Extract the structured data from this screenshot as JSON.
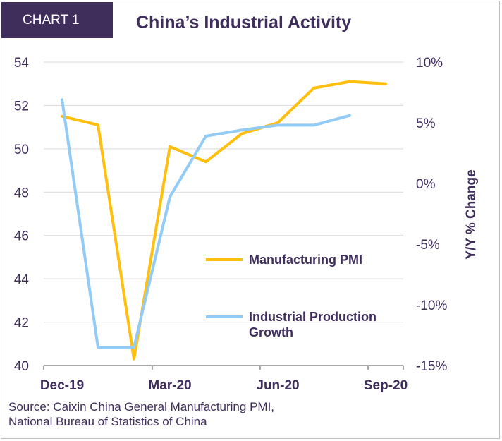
{
  "header": {
    "badge": "CHART 1",
    "title": "China’s Industrial Activity"
  },
  "source": "Source: Caixin China General Manufacturing PMI,\nNational Bureau of Statistics of China",
  "colors": {
    "pmi": "#ffbf0f",
    "ip": "#92cbf6",
    "text": "#3f2d5c"
  },
  "chart_data": {
    "type": "line",
    "x_ticks": [
      "Dec-19",
      "Mar-20",
      "Jun-20",
      "Sep-20"
    ],
    "y_left": {
      "ticks": [
        "40",
        "42",
        "44",
        "46",
        "48",
        "50",
        "52",
        "54"
      ],
      "ylim": [
        40,
        54
      ]
    },
    "y_right": {
      "ticks": [
        "-15%",
        "-10%",
        "-5%",
        "0%",
        "5%",
        "10%"
      ],
      "ylim": [
        -15,
        10
      ],
      "label": "Y/Y % Change"
    },
    "grid": true,
    "legend": "center-right",
    "series": [
      {
        "name": "Manufacturing PMI",
        "axis": "left",
        "x": [
          "Dec-19",
          "Jan-20",
          "Feb-20",
          "Mar-20",
          "Apr-20",
          "May-20",
          "Jun-20",
          "Jul-20",
          "Aug-20",
          "Sep-20"
        ],
        "values": [
          51.5,
          51.1,
          40.3,
          50.1,
          49.4,
          50.7,
          51.2,
          52.8,
          53.1,
          53.0
        ]
      },
      {
        "name": "Industrial Production Growth",
        "axis": "right",
        "x": [
          "Dec-19",
          "Jan-20",
          "Feb-20",
          "Mar-20",
          "Apr-20",
          "May-20",
          "Jun-20",
          "Jul-20",
          "Aug-20"
        ],
        "values": [
          6.9,
          -13.5,
          -13.5,
          -1.1,
          3.9,
          4.4,
          4.8,
          4.8,
          5.6
        ]
      }
    ]
  }
}
